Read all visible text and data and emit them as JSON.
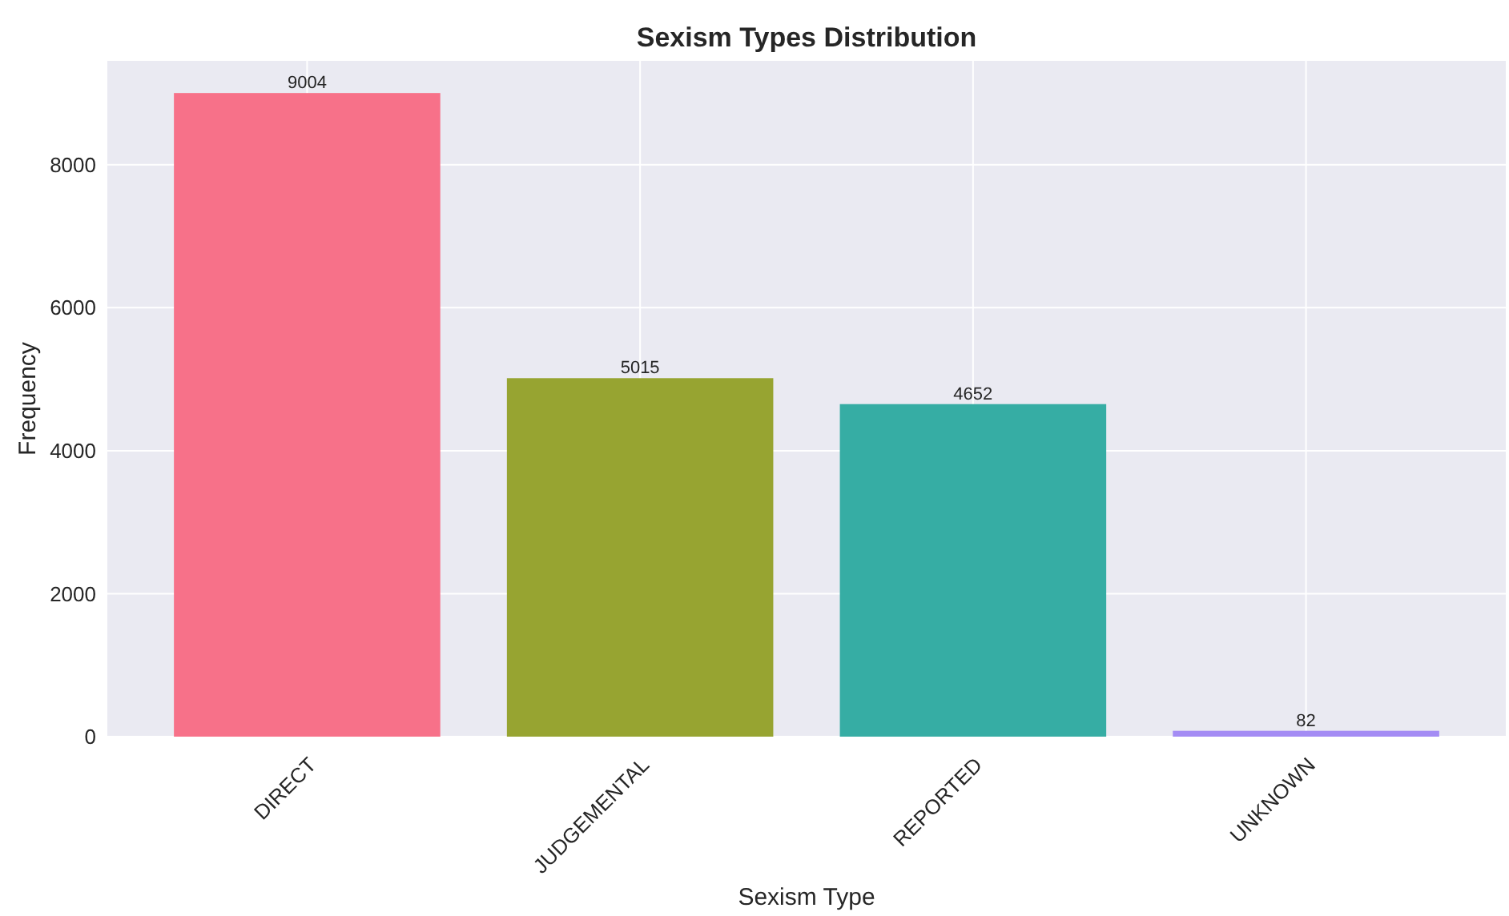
{
  "chart_data": {
    "type": "bar",
    "title": "Sexism Types Distribution",
    "xlabel": "Sexism Type",
    "ylabel": "Frequency",
    "categories": [
      "DIRECT",
      "JUDGEMENTAL",
      "REPORTED",
      "UNKNOWN"
    ],
    "values": [
      9004,
      5015,
      4652,
      82
    ],
    "colors": [
      "#f77189",
      "#97a431",
      "#36ada4",
      "#a48cf4"
    ],
    "ylim": [
      0,
      9454
    ],
    "yticks": [
      0,
      2000,
      4000,
      6000,
      8000
    ],
    "grid": true,
    "data_labels": true
  }
}
